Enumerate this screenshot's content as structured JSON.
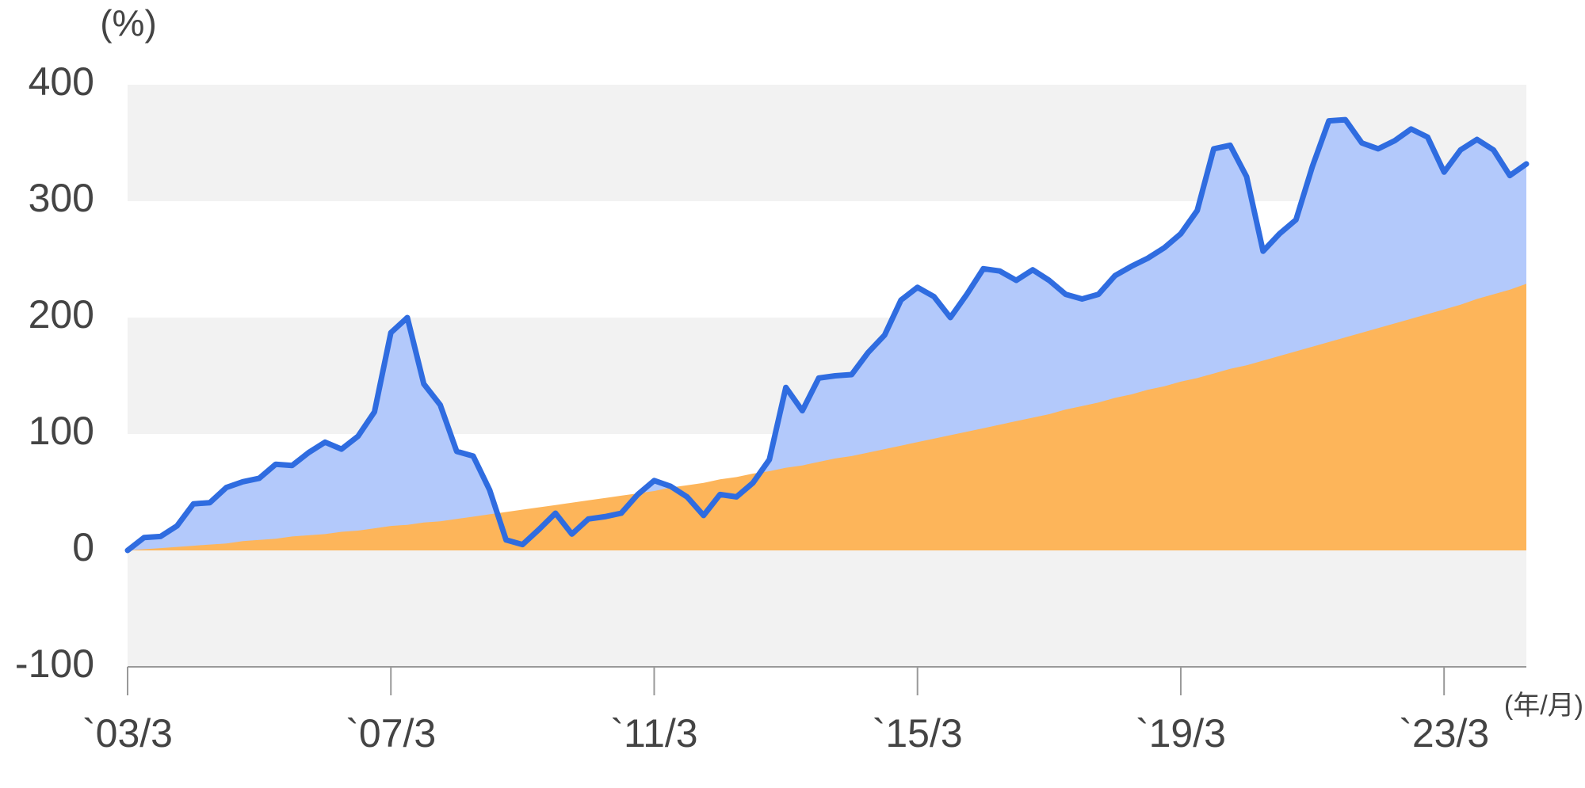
{
  "chart_data": {
    "type": "line",
    "y_label": "(%)",
    "x_label": "(年/月)",
    "x": [
      "2003-03",
      "2003-06",
      "2003-09",
      "2003-12",
      "2004-03",
      "2004-06",
      "2004-09",
      "2004-12",
      "2005-03",
      "2005-06",
      "2005-09",
      "2005-12",
      "2006-03",
      "2006-06",
      "2006-09",
      "2006-12",
      "2007-03",
      "2007-06",
      "2007-09",
      "2007-12",
      "2008-03",
      "2008-06",
      "2008-09",
      "2008-12",
      "2009-03",
      "2009-06",
      "2009-09",
      "2009-12",
      "2010-03",
      "2010-06",
      "2010-09",
      "2010-12",
      "2011-03",
      "2011-06",
      "2011-09",
      "2011-12",
      "2012-03",
      "2012-06",
      "2012-09",
      "2012-12",
      "2013-03",
      "2013-06",
      "2013-09",
      "2013-12",
      "2014-03",
      "2014-06",
      "2014-09",
      "2014-12",
      "2015-03",
      "2015-06",
      "2015-09",
      "2015-12",
      "2016-03",
      "2016-06",
      "2016-09",
      "2016-12",
      "2017-03",
      "2017-06",
      "2017-09",
      "2017-12",
      "2018-03",
      "2018-06",
      "2018-09",
      "2018-12",
      "2019-03",
      "2019-06",
      "2019-09",
      "2019-12",
      "2020-03",
      "2020-06",
      "2020-09",
      "2020-12",
      "2021-03",
      "2021-06",
      "2021-09",
      "2021-12",
      "2022-03",
      "2022-06",
      "2022-09",
      "2022-12",
      "2023-03",
      "2023-06",
      "2023-09",
      "2023-12",
      "2024-03",
      "2024-06"
    ],
    "series": [
      {
        "color": "#2f6ce0",
        "area_color": "#b3c9fb",
        "values": [
          0,
          11,
          12,
          21,
          40,
          41,
          54,
          59,
          62,
          74,
          73,
          84,
          93,
          87,
          98,
          119,
          187,
          200,
          143,
          125,
          85,
          81,
          52,
          9,
          5,
          18,
          32,
          14,
          27,
          29,
          32,
          48,
          60,
          55,
          46,
          30,
          48,
          46,
          58,
          78,
          140,
          120,
          148,
          150,
          151,
          170,
          185,
          215,
          226,
          218,
          200,
          220,
          242,
          240,
          232,
          241,
          232,
          220,
          216,
          220,
          236,
          244,
          251,
          260,
          272,
          292,
          345,
          348,
          321,
          257,
          272,
          284,
          330,
          369,
          370,
          350,
          345,
          352,
          362,
          355,
          325,
          344,
          353,
          344,
          322,
          332
        ]
      },
      {
        "color": "#fdb55a",
        "values": [
          0,
          1,
          2,
          3,
          4,
          5,
          6,
          8,
          9,
          10,
          12,
          13,
          14,
          16,
          17,
          19,
          21,
          22,
          24,
          25,
          27,
          29,
          31,
          33,
          35,
          37,
          39,
          41,
          43,
          45,
          47,
          49,
          51,
          54,
          56,
          58,
          61,
          63,
          66,
          68,
          71,
          73,
          76,
          79,
          81,
          84,
          87,
          90,
          93,
          96,
          99,
          102,
          105,
          108,
          111,
          114,
          117,
          121,
          124,
          127,
          131,
          134,
          138,
          141,
          145,
          148,
          152,
          156,
          159,
          163,
          167,
          171,
          175,
          179,
          183,
          187,
          191,
          195,
          199,
          203,
          207,
          211,
          216,
          220,
          224,
          229
        ]
      }
    ],
    "xlim": [
      "2003-03",
      "2024-06"
    ],
    "xticks": [
      {
        "value": "2003-03",
        "label": "`03/3"
      },
      {
        "value": "2007-03",
        "label": "`07/3"
      },
      {
        "value": "2011-03",
        "label": "`11/3"
      },
      {
        "value": "2015-03",
        "label": "`15/3"
      },
      {
        "value": "2019-03",
        "label": "`19/3"
      },
      {
        "value": "2023-03",
        "label": "`23/3"
      }
    ],
    "ylim": [
      -100,
      400
    ],
    "yticks": [
      -100,
      0,
      100,
      200,
      300,
      400
    ],
    "grid": true
  }
}
